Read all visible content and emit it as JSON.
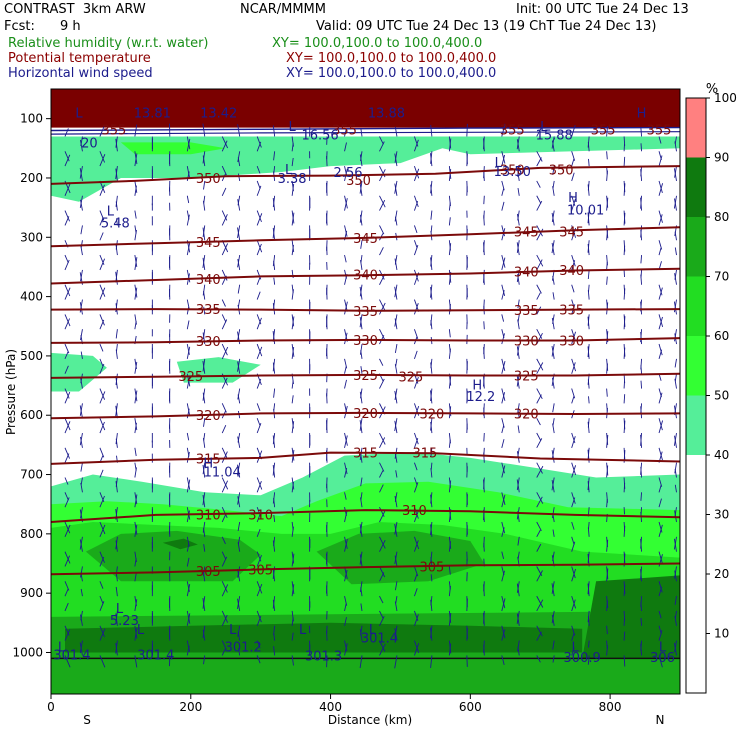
{
  "header": {
    "model": "CONTRAST  3km ARW",
    "org": "NCAR/MMMM",
    "init": "Init: 00 UTC Tue 24 Dec 13",
    "fcst_label": "Fcst:",
    "fcst_value": "9 h",
    "valid": "Valid: 09 UTC Tue 24 Dec 13 (19 ChT Tue 24 Dec 13)",
    "fields": [
      {
        "name": "Relative humidity (w.r.t. water)",
        "xy": "XY= 100.0,100.0 to 100.0,400.0",
        "color": "#1a8f1a"
      },
      {
        "name": "Potential temperature",
        "xy": "XY= 100.0,100.0 to 100.0,400.0",
        "color": "#8b0000"
      },
      {
        "name": "Horizontal wind speed",
        "xy": "XY= 100.0,100.0 to 100.0,400.0",
        "color": "#1c1c8c"
      }
    ]
  },
  "colors": {
    "theta": "#7b0a0a",
    "wind": "#1c1c8c",
    "rh": [
      "#ffffff",
      "#ffffff",
      "#ffffff",
      "#ffffff",
      "#ffffff",
      "#55ee99",
      "#33ff33",
      "#22dd22",
      "#1aaa1a",
      "#0f7a0f",
      "#ff8080"
    ]
  },
  "chart_data": {
    "type": "contour",
    "xlabel": "Distance (km)",
    "ylabel": "Pressure (hPa)",
    "x_ticks": [
      0,
      200,
      400,
      600,
      800
    ],
    "y_ticks": [
      100,
      200,
      300,
      400,
      500,
      600,
      700,
      800,
      900,
      1000
    ],
    "xlim": [
      0,
      900
    ],
    "ylim": [
      1070,
      50
    ],
    "x_end_labels": {
      "left": "S",
      "right": "N"
    },
    "colorbar": {
      "unit": "%",
      "levels": [
        10,
        20,
        30,
        40,
        50,
        60,
        70,
        80,
        90,
        100
      ],
      "colors": [
        "#ffffff",
        "#ffffff",
        "#ffffff",
        "#ffffff",
        "#55ee99",
        "#33ff33",
        "#22dd22",
        "#1aaa1a",
        "#0f7a0f",
        "#ff8080"
      ]
    },
    "theta_contours": [
      {
        "value": 350,
        "label": "350",
        "pts": [
          [
            0,
            210
          ],
          [
            120,
            205
          ],
          [
            250,
            197
          ],
          [
            400,
            196
          ],
          [
            550,
            193
          ],
          [
            700,
            183
          ],
          [
            900,
            180
          ]
        ]
      },
      {
        "value": 345,
        "label": "345",
        "pts": [
          [
            0,
            315
          ],
          [
            150,
            310
          ],
          [
            300,
            305
          ],
          [
            450,
            301
          ],
          [
            600,
            295
          ],
          [
            750,
            288
          ],
          [
            900,
            283
          ]
        ]
      },
      {
        "value": 340,
        "label": "340",
        "pts": [
          [
            0,
            378
          ],
          [
            150,
            372
          ],
          [
            300,
            366
          ],
          [
            450,
            364
          ],
          [
            600,
            361
          ],
          [
            750,
            356
          ],
          [
            900,
            353
          ]
        ]
      },
      {
        "value": 335,
        "label": "335",
        "pts": [
          [
            0,
            422
          ],
          [
            150,
            421
          ],
          [
            300,
            422
          ],
          [
            450,
            424
          ],
          [
            600,
            423
          ],
          [
            750,
            422
          ],
          [
            900,
            421
          ]
        ]
      },
      {
        "value": 330,
        "label": "330",
        "pts": [
          [
            0,
            478
          ],
          [
            150,
            477
          ],
          [
            300,
            474
          ],
          [
            450,
            473
          ],
          [
            600,
            474
          ],
          [
            750,
            474
          ],
          [
            900,
            470
          ]
        ]
      },
      {
        "value": 325,
        "label": "325",
        "pts": [
          [
            0,
            537
          ],
          [
            150,
            535
          ],
          [
            300,
            533
          ],
          [
            450,
            532
          ],
          [
            600,
            533
          ],
          [
            750,
            533
          ],
          [
            900,
            530
          ]
        ]
      },
      {
        "value": 320,
        "label": "320",
        "pts": [
          [
            0,
            605
          ],
          [
            150,
            602
          ],
          [
            300,
            597
          ],
          [
            450,
            596
          ],
          [
            600,
            597
          ],
          [
            750,
            598
          ],
          [
            900,
            597
          ]
        ]
      },
      {
        "value": 315,
        "label": "315",
        "pts": [
          [
            0,
            682
          ],
          [
            150,
            675
          ],
          [
            300,
            672
          ],
          [
            400,
            663
          ],
          [
            550,
            664
          ],
          [
            700,
            673
          ],
          [
            900,
            678
          ]
        ]
      },
      {
        "value": 310,
        "label": "310",
        "pts": [
          [
            0,
            780
          ],
          [
            150,
            768
          ],
          [
            300,
            765
          ],
          [
            450,
            760
          ],
          [
            600,
            762
          ],
          [
            750,
            768
          ],
          [
            900,
            772
          ]
        ]
      },
      {
        "value": 305,
        "label": "305",
        "pts": [
          [
            0,
            868
          ],
          [
            150,
            865
          ],
          [
            300,
            860
          ],
          [
            450,
            856
          ],
          [
            600,
            853
          ],
          [
            750,
            852
          ],
          [
            900,
            850
          ]
        ]
      }
    ],
    "theta_labels": [
      {
        "text": "355",
        "x": 90,
        "p": 118
      },
      {
        "text": "355",
        "x": 420,
        "p": 118
      },
      {
        "text": "355",
        "x": 660,
        "p": 118
      },
      {
        "text": "355",
        "x": 790,
        "p": 118
      },
      {
        "text": "355",
        "x": 870,
        "p": 118
      },
      {
        "text": "350",
        "x": 225,
        "p": 200
      },
      {
        "text": "350",
        "x": 440,
        "p": 203
      },
      {
        "text": "350",
        "x": 660,
        "p": 186
      },
      {
        "text": "350",
        "x": 730,
        "p": 186
      },
      {
        "text": "345",
        "x": 225,
        "p": 308
      },
      {
        "text": "345",
        "x": 450,
        "p": 301
      },
      {
        "text": "345",
        "x": 680,
        "p": 290
      },
      {
        "text": "345",
        "x": 745,
        "p": 290
      },
      {
        "text": "340",
        "x": 225,
        "p": 370
      },
      {
        "text": "340",
        "x": 450,
        "p": 363
      },
      {
        "text": "340",
        "x": 680,
        "p": 358
      },
      {
        "text": "340",
        "x": 745,
        "p": 355
      },
      {
        "text": "335",
        "x": 225,
        "p": 421
      },
      {
        "text": "335",
        "x": 450,
        "p": 424
      },
      {
        "text": "335",
        "x": 680,
        "p": 423
      },
      {
        "text": "335",
        "x": 745,
        "p": 422
      },
      {
        "text": "330",
        "x": 225,
        "p": 475
      },
      {
        "text": "330",
        "x": 450,
        "p": 473
      },
      {
        "text": "330",
        "x": 680,
        "p": 474
      },
      {
        "text": "330",
        "x": 745,
        "p": 474
      },
      {
        "text": "325",
        "x": 200,
        "p": 534
      },
      {
        "text": "325",
        "x": 450,
        "p": 532
      },
      {
        "text": "325",
        "x": 515,
        "p": 535
      },
      {
        "text": "325",
        "x": 680,
        "p": 533
      },
      {
        "text": "320",
        "x": 225,
        "p": 600
      },
      {
        "text": "320",
        "x": 450,
        "p": 596
      },
      {
        "text": "320",
        "x": 545,
        "p": 597
      },
      {
        "text": "320",
        "x": 680,
        "p": 597
      },
      {
        "text": "315",
        "x": 225,
        "p": 673
      },
      {
        "text": "315",
        "x": 450,
        "p": 663
      },
      {
        "text": "315",
        "x": 535,
        "p": 663
      },
      {
        "text": "310",
        "x": 225,
        "p": 767
      },
      {
        "text": "310",
        "x": 300,
        "p": 767
      },
      {
        "text": "310",
        "x": 520,
        "p": 760
      },
      {
        "text": "305",
        "x": 225,
        "p": 863
      },
      {
        "text": "305",
        "x": 300,
        "p": 860
      },
      {
        "text": "305",
        "x": 545,
        "p": 855
      }
    ],
    "wind_labels": [
      {
        "text": "L",
        "x": 40,
        "p": 90
      },
      {
        "text": "13.81",
        "x": 145,
        "p": 90
      },
      {
        "text": "13.42",
        "x": 240,
        "p": 90
      },
      {
        "text": "13.88",
        "x": 480,
        "p": 90
      },
      {
        "text": "H",
        "x": 845,
        "p": 90
      },
      {
        "text": "20",
        "x": 55,
        "p": 140
      },
      {
        "text": "L",
        "x": 345,
        "p": 112
      },
      {
        "text": "16.56",
        "x": 385,
        "p": 127
      },
      {
        "text": "L",
        "x": 705,
        "p": 112
      },
      {
        "text": "15.88",
        "x": 720,
        "p": 127
      },
      {
        "text": "L",
        "x": 340,
        "p": 185
      },
      {
        "text": "3.38",
        "x": 345,
        "p": 200
      },
      {
        "text": "2.56",
        "x": 425,
        "p": 190
      },
      {
        "text": "L",
        "x": 640,
        "p": 173
      },
      {
        "text": "13.50",
        "x": 660,
        "p": 188
      },
      {
        "text": "H",
        "x": 747,
        "p": 232
      },
      {
        "text": "10.01",
        "x": 765,
        "p": 253
      },
      {
        "text": "L",
        "x": 85,
        "p": 255
      },
      {
        "text": "5.48",
        "x": 92,
        "p": 275
      },
      {
        "text": "H",
        "x": 610,
        "p": 548
      },
      {
        "text": "12.2",
        "x": 615,
        "p": 568
      },
      {
        "text": "H",
        "x": 225,
        "p": 680
      },
      {
        "text": "11.04",
        "x": 245,
        "p": 695
      },
      {
        "text": "L",
        "x": 98,
        "p": 925
      },
      {
        "text": "5.23",
        "x": 105,
        "p": 945
      },
      {
        "text": "L",
        "x": 128,
        "p": 960
      },
      {
        "text": "L",
        "x": 260,
        "p": 960
      },
      {
        "text": "L",
        "x": 360,
        "p": 960
      },
      {
        "text": "L",
        "x": 460,
        "p": 960
      },
      {
        "text": "301.4",
        "x": 470,
        "p": 975
      },
      {
        "text": "301.2",
        "x": 275,
        "p": 990
      },
      {
        "text": "301.3",
        "x": 390,
        "p": 1005
      },
      {
        "text": "L",
        "x": 15,
        "p": 990
      },
      {
        "text": "301.4",
        "x": 30,
        "p": 1003
      },
      {
        "text": "301.4",
        "x": 150,
        "p": 1003
      },
      {
        "text": "L",
        "x": 750,
        "p": 990
      },
      {
        "text": "300.9",
        "x": 760,
        "p": 1008
      },
      {
        "text": "L",
        "x": 875,
        "p": 990
      },
      {
        "text": "306",
        "x": 875,
        "p": 1008
      }
    ]
  }
}
